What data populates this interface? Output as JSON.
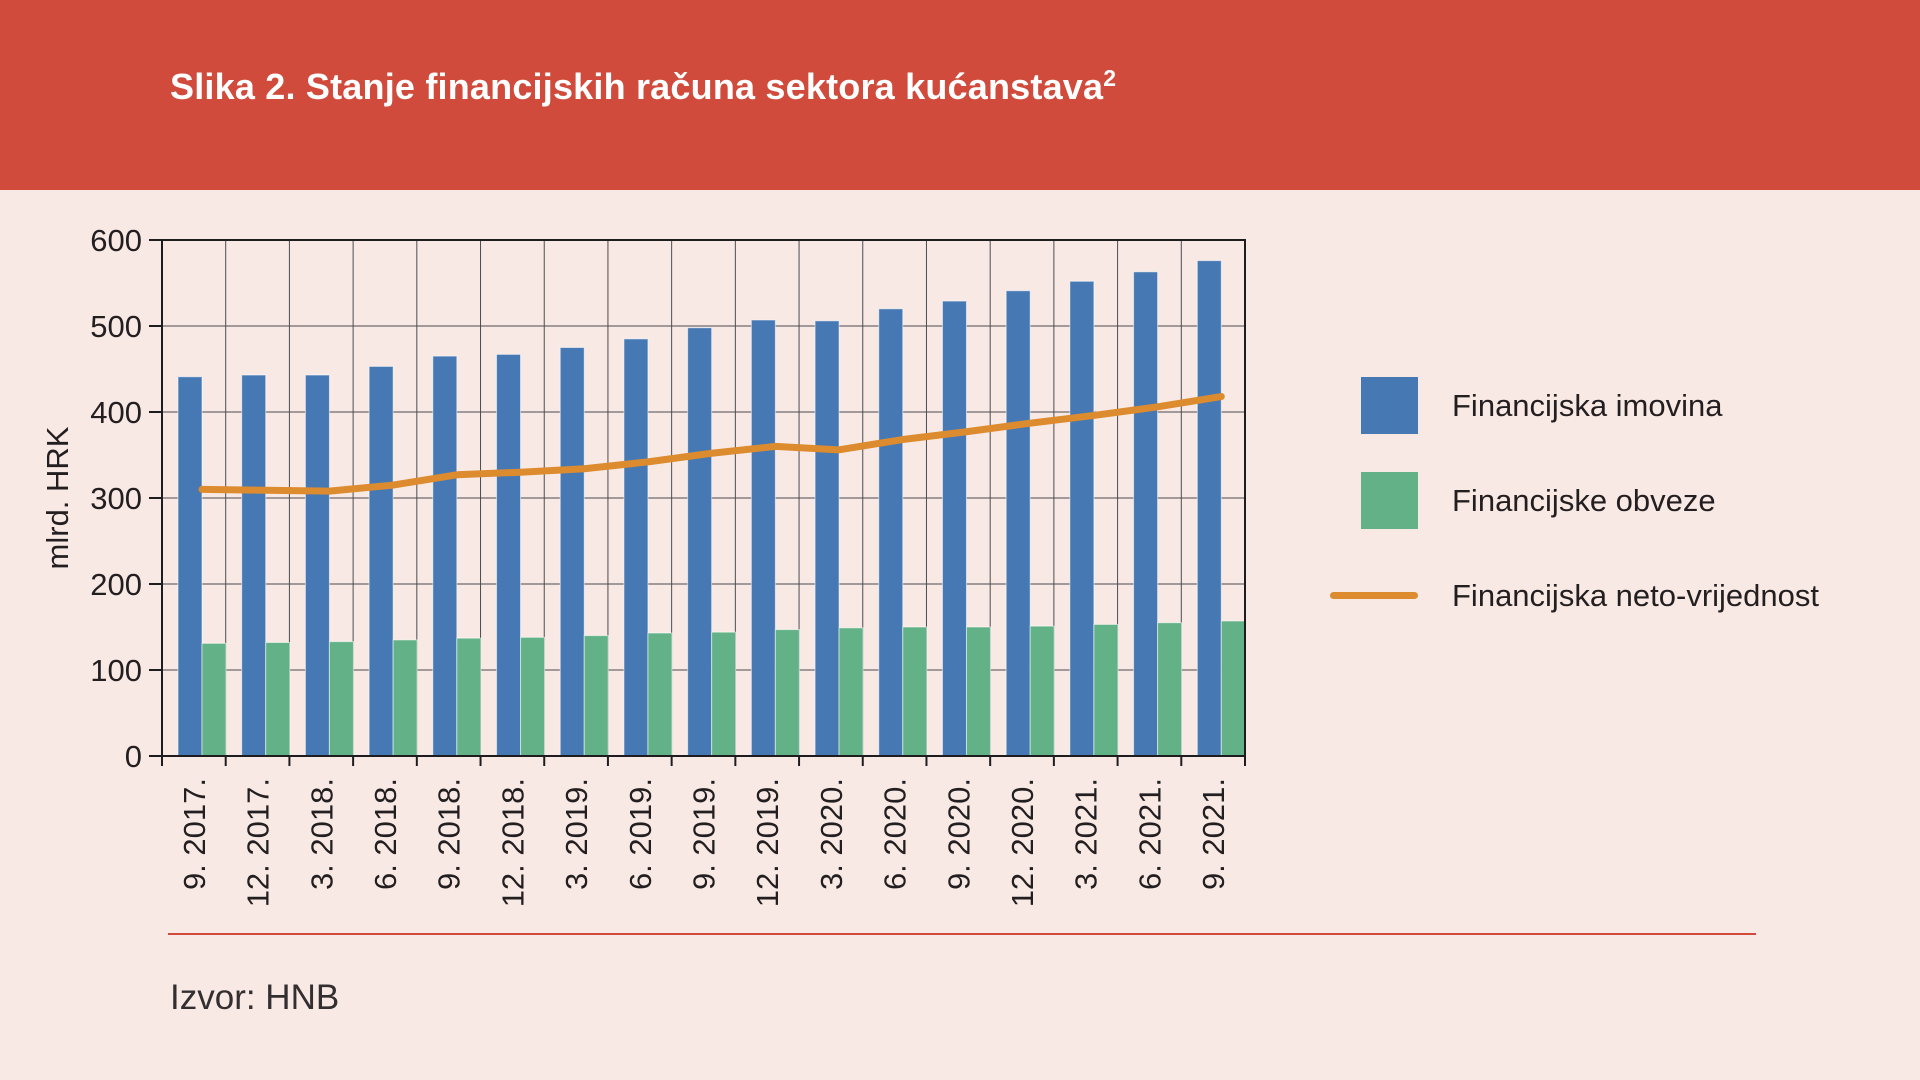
{
  "header": {
    "title": "Slika 2. Stanje financijskih računa sektora kućanstava",
    "title_superscript": "2"
  },
  "source": {
    "label": "Izvor: HNB"
  },
  "colors": {
    "banner_red": "#d04b3c",
    "page_background": "#f9e9e5",
    "assets_blue": "#4678b3",
    "liabilities_green": "#63b287",
    "networth_orange": "#dd8b2f",
    "gridline": "#4c4c4e",
    "plot_border": "#1d1d1f",
    "text": "#231f20"
  },
  "chart_data": {
    "type": "bar",
    "title": "Slika 2. Stanje financijskih računa sektora kućanstava²",
    "xlabel": "",
    "ylabel": "mlrd. HRK",
    "ylim": [
      0,
      600
    ],
    "ytick_interval": 100,
    "yticks": [
      0,
      100,
      200,
      300,
      400,
      500,
      600
    ],
    "grid": true,
    "legend_position": "right",
    "categories": [
      "9. 2017.",
      "12. 2017.",
      "3. 2018.",
      "6. 2018.",
      "9. 2018.",
      "12. 2018.",
      "3. 2019.",
      "6. 2019.",
      "9. 2019.",
      "12. 2019.",
      "3. 2020.",
      "6. 2020.",
      "9. 2020.",
      "12. 2020.",
      "3. 2021.",
      "6. 2021.",
      "9. 2021."
    ],
    "series": [
      {
        "name": "Financijska imovina",
        "type": "bar",
        "color": "#4678b3",
        "values": [
          441,
          443,
          443,
          453,
          465,
          467,
          475,
          485,
          498,
          507,
          506,
          520,
          529,
          541,
          552,
          563,
          576
        ]
      },
      {
        "name": "Financijske obveze",
        "type": "bar",
        "color": "#63b287",
        "values": [
          131,
          132,
          133,
          135,
          137,
          138,
          140,
          143,
          144,
          147,
          149,
          150,
          150,
          151,
          153,
          155,
          157
        ]
      },
      {
        "name": "Financijska neto-vrijednost",
        "type": "line",
        "color": "#dd8b2f",
        "values": [
          310,
          309,
          308,
          315,
          327,
          330,
          334,
          342,
          352,
          360,
          356,
          368,
          377,
          387,
          396,
          406,
          418
        ]
      }
    ]
  }
}
